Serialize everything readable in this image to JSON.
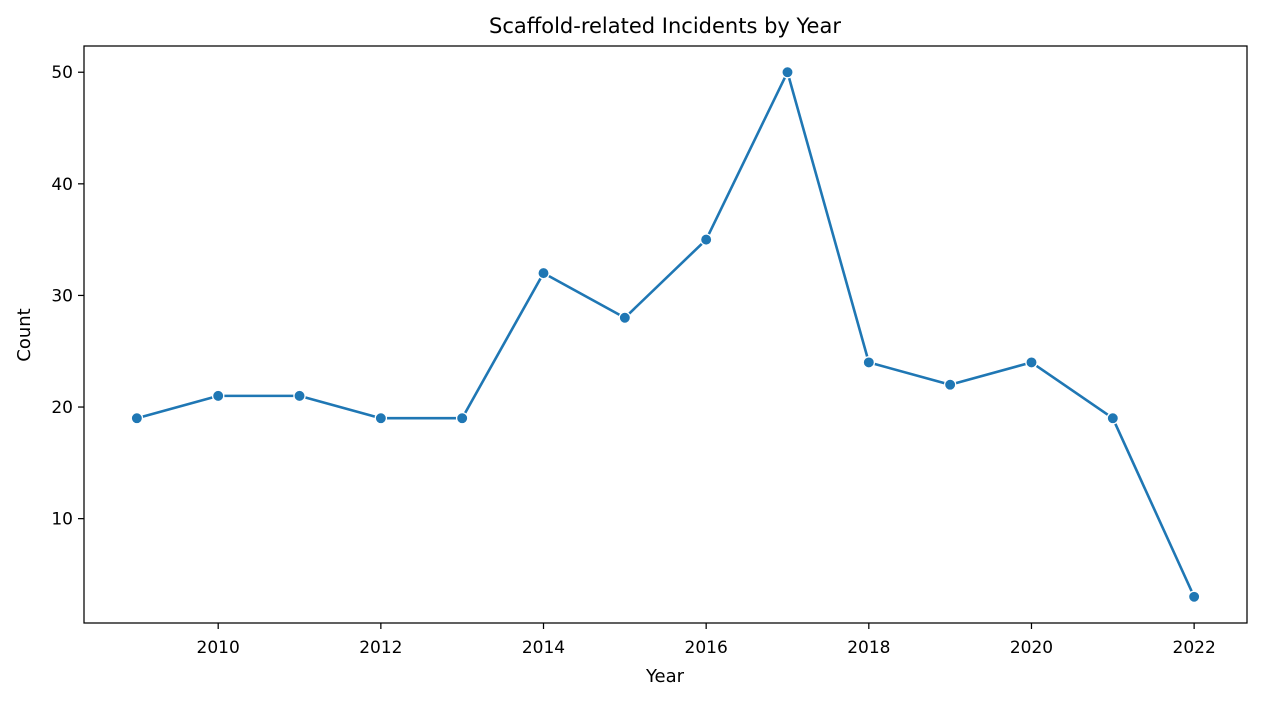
{
  "chart_data": {
    "type": "line",
    "title": "Scaffold-related Incidents by Year",
    "xlabel": "Year",
    "ylabel": "Count",
    "x": [
      2009,
      2010,
      2011,
      2012,
      2013,
      2014,
      2015,
      2016,
      2017,
      2018,
      2019,
      2020,
      2021,
      2022
    ],
    "series": [
      {
        "values": [
          19,
          21,
          21,
          19,
          19,
          32,
          28,
          35,
          50,
          24,
          22,
          24,
          19,
          3
        ],
        "color": "#1f77b4"
      }
    ],
    "xlim": [
      2008.35,
      2022.65
    ],
    "ylim": [
      0.65,
      52.35
    ],
    "xticks": [
      2010,
      2012,
      2014,
      2016,
      2018,
      2020,
      2022
    ],
    "yticks": [
      10,
      20,
      30,
      40,
      50
    ],
    "grid": false,
    "legend": "none"
  }
}
